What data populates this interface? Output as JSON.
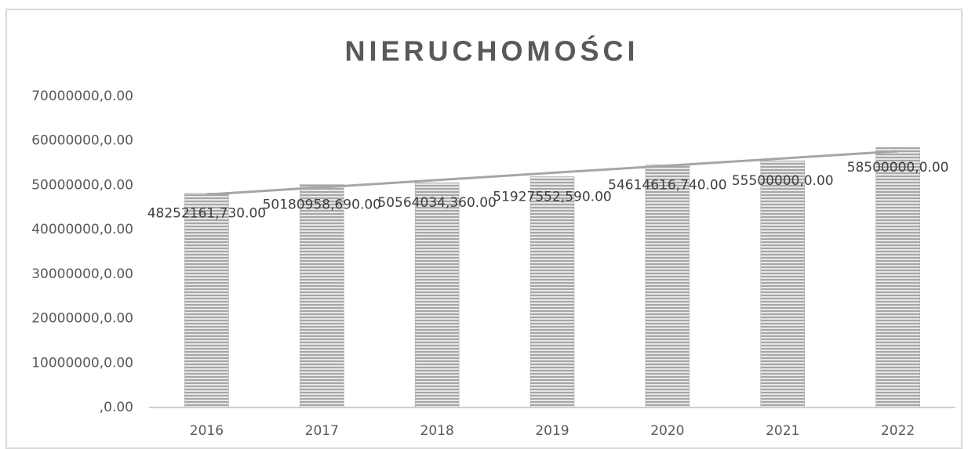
{
  "chart_data": {
    "type": "bar",
    "title": "NIERUCHOMOŚCI",
    "categories": [
      "2016",
      "2017",
      "2018",
      "2019",
      "2020",
      "2021",
      "2022"
    ],
    "values": [
      48252161.73,
      50180958.69,
      50564034.36,
      51927552.59,
      54614616.74,
      55500000,
      58500000
    ],
    "value_labels": [
      "48252161,730.00",
      "50180958,690.00",
      "50564034,360.00",
      "51927552,590.00",
      "54614616,740.00",
      "55500000,0.00",
      "58500000,0.00"
    ],
    "color": "#a6a6a6",
    "trendline": true,
    "ylim": [
      0,
      70000000
    ],
    "yticks": [
      {
        "value": 0,
        "label": ",0.00"
      },
      {
        "value": 10000000,
        "label": "10000000,0.00"
      },
      {
        "value": 20000000,
        "label": "20000000,0.00"
      },
      {
        "value": 30000000,
        "label": "30000000,0.00"
      },
      {
        "value": 40000000,
        "label": "40000000,0.00"
      },
      {
        "value": 50000000,
        "label": "50000000,0.00"
      },
      {
        "value": 60000000,
        "label": "60000000,0.00"
      },
      {
        "value": 70000000,
        "label": "70000000,0.00"
      }
    ],
    "grid": false
  }
}
